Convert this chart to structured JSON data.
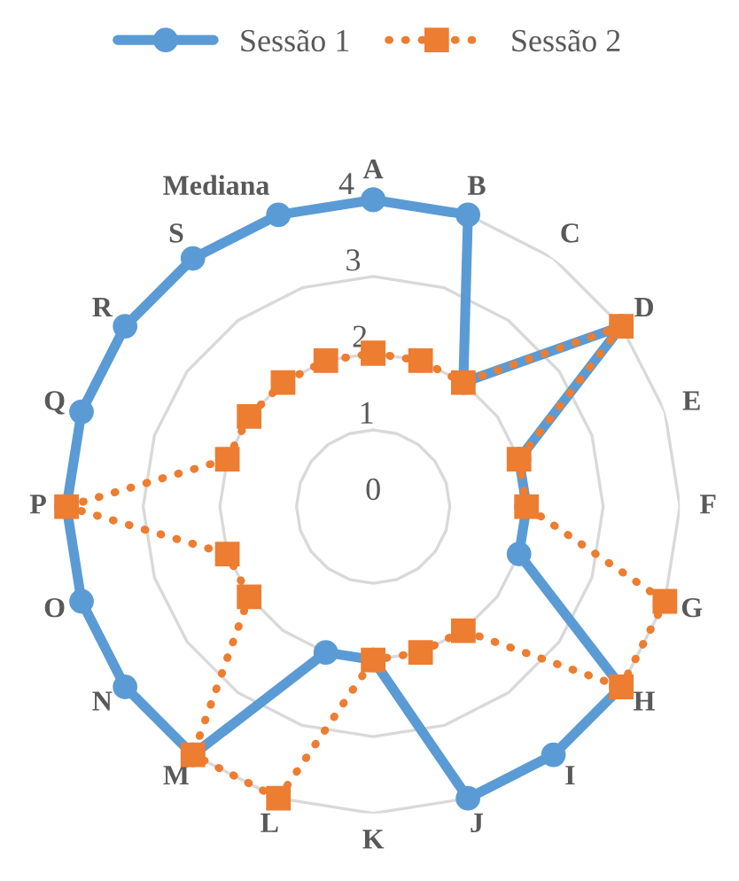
{
  "chart_data": {
    "type": "radar",
    "categories": [
      "A",
      "B",
      "C",
      "D",
      "E",
      "F",
      "G",
      "H",
      "I",
      "J",
      "K",
      "L",
      "M",
      "N",
      "O",
      "P",
      "Q",
      "R",
      "S",
      "Mediana"
    ],
    "series": [
      {
        "name": "Sessão 1",
        "color": "#5b9bd5",
        "marker": "circle",
        "line_style": "solid",
        "values": [
          4,
          4,
          2,
          4,
          2,
          2,
          2,
          4,
          4,
          4,
          2,
          2,
          4,
          4,
          4,
          4,
          4,
          4,
          4,
          4
        ]
      },
      {
        "name": "Sessão 2",
        "color": "#ed7d31",
        "marker": "square",
        "line_style": "dotted",
        "values": [
          2,
          2,
          2,
          4,
          2,
          2,
          4,
          4,
          2,
          2,
          2,
          4,
          4,
          2,
          2,
          4,
          2,
          2,
          2,
          2
        ]
      }
    ],
    "ylim": [
      0,
      4
    ],
    "yticks": [
      0,
      1,
      2,
      3,
      4
    ],
    "grid": true,
    "legend": "top"
  }
}
